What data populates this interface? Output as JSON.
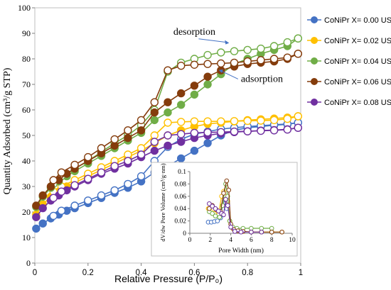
{
  "chart_data": {
    "type": "line",
    "xlabel": "Relative Pressure (P/P₀)",
    "ylabel": "Quantity Adsorbed (cm³/g STP)",
    "xlim": [
      0,
      1
    ],
    "ylim": [
      0,
      100
    ],
    "xticks": [
      "0",
      "0.2",
      "0.4",
      "0.6",
      "0.8",
      "1"
    ],
    "yticks": [
      "0",
      "10",
      "20",
      "30",
      "40",
      "50",
      "60",
      "70",
      "80",
      "90",
      "100"
    ],
    "grid": false,
    "legend_position": "right",
    "series": [
      {
        "name": "CoNiPr X= 0.00 US",
        "color": "#4472c4",
        "adsorption": {
          "x": [
            0.005,
            0.03,
            0.06,
            0.09,
            0.12,
            0.15,
            0.2,
            0.25,
            0.3,
            0.35,
            0.4,
            0.45,
            0.5,
            0.55,
            0.6,
            0.65,
            0.7,
            0.75,
            0.8,
            0.85,
            0.9,
            0.95,
            0.99
          ],
          "y": [
            13.5,
            15.5,
            17.5,
            19,
            20.5,
            21.5,
            23.5,
            25.5,
            27.5,
            29.5,
            32,
            35.5,
            38,
            41,
            44,
            47,
            50,
            52,
            53,
            53.5,
            54,
            54.3,
            55
          ]
        },
        "desorption": {
          "x": [
            0.99,
            0.95,
            0.9,
            0.85,
            0.8,
            0.75,
            0.7,
            0.65,
            0.6,
            0.55,
            0.5,
            0.45,
            0.4,
            0.35,
            0.3,
            0.25,
            0.2,
            0.15,
            0.1,
            0.07
          ],
          "y": [
            55,
            54.5,
            54.2,
            53.8,
            53.5,
            53,
            52.5,
            51.5,
            50.5,
            48.5,
            45.5,
            40,
            34,
            31,
            28.5,
            26.5,
            24.5,
            22.5,
            20.5,
            18.5
          ]
        }
      },
      {
        "name": "CoNiPr X= 0.02 US",
        "color": "#ffc000",
        "adsorption": {
          "x": [
            0.005,
            0.03,
            0.06,
            0.09,
            0.12,
            0.15,
            0.2,
            0.25,
            0.3,
            0.35,
            0.4,
            0.45,
            0.5,
            0.55,
            0.6,
            0.65,
            0.7,
            0.75,
            0.8,
            0.85,
            0.9,
            0.95,
            0.99
          ],
          "y": [
            19,
            23,
            26,
            28,
            30,
            31.5,
            34,
            36.5,
            39,
            41.5,
            44,
            47,
            50,
            52,
            53.5,
            54.5,
            55,
            55.5,
            56,
            56.3,
            56.6,
            57,
            57.5
          ]
        },
        "desorption": {
          "x": [
            0.99,
            0.95,
            0.9,
            0.85,
            0.8,
            0.75,
            0.7,
            0.65,
            0.6,
            0.55,
            0.5,
            0.45,
            0.4,
            0.35,
            0.3,
            0.25,
            0.2,
            0.15,
            0.1,
            0.07
          ],
          "y": [
            57.5,
            56.5,
            56,
            55.8,
            55.7,
            55.6,
            55.5,
            55.5,
            55.5,
            55.3,
            55,
            50,
            45,
            42.5,
            40,
            37.5,
            35,
            32.5,
            30,
            28
          ]
        }
      },
      {
        "name": "CoNiPr X= 0.04 US",
        "color": "#70ad47",
        "adsorption": {
          "x": [
            0.005,
            0.03,
            0.06,
            0.09,
            0.12,
            0.15,
            0.2,
            0.25,
            0.3,
            0.35,
            0.4,
            0.45,
            0.5,
            0.55,
            0.6,
            0.65,
            0.7,
            0.75,
            0.8,
            0.85,
            0.9,
            0.95,
            0.99
          ],
          "y": [
            22,
            26,
            29.5,
            32,
            34,
            36,
            39,
            42,
            45,
            48,
            51,
            56,
            59,
            62,
            66,
            70,
            74,
            78,
            80,
            82,
            83.5,
            85,
            88
          ]
        },
        "desorption": {
          "x": [
            0.99,
            0.95,
            0.9,
            0.85,
            0.8,
            0.75,
            0.7,
            0.65,
            0.6,
            0.55,
            0.5,
            0.45,
            0.4,
            0.35,
            0.3,
            0.25,
            0.2,
            0.15,
            0.1,
            0.07
          ],
          "y": [
            88,
            86.5,
            85,
            84,
            83.5,
            83,
            82.5,
            81.5,
            80,
            78.5,
            75,
            60,
            54,
            50,
            47,
            43.5,
            40,
            37,
            34,
            31
          ]
        }
      },
      {
        "name": "CoNiPr X= 0.06 US",
        "color": "#843c0c",
        "adsorption": {
          "x": [
            0.005,
            0.03,
            0.06,
            0.09,
            0.12,
            0.15,
            0.2,
            0.25,
            0.3,
            0.35,
            0.4,
            0.45,
            0.5,
            0.55,
            0.6,
            0.65,
            0.7,
            0.75,
            0.8,
            0.85,
            0.9,
            0.95,
            0.99
          ],
          "y": [
            22.5,
            26.5,
            30,
            32.5,
            35,
            37,
            40,
            43,
            46,
            49,
            52,
            59,
            63,
            66.5,
            69.5,
            73,
            75.5,
            77,
            78,
            78.5,
            79,
            80,
            82
          ]
        },
        "desorption": {
          "x": [
            0.99,
            0.95,
            0.9,
            0.85,
            0.8,
            0.75,
            0.7,
            0.65,
            0.6,
            0.55,
            0.5,
            0.45,
            0.4,
            0.35,
            0.3,
            0.25,
            0.2,
            0.15,
            0.1,
            0.07
          ],
          "y": [
            82,
            80.5,
            80,
            79.5,
            79,
            78.5,
            78.2,
            78,
            77.7,
            77.3,
            75.5,
            63,
            56,
            52,
            48.5,
            45,
            41.5,
            38.5,
            35.5,
            32.5
          ]
        }
      },
      {
        "name": "CoNiPr X= 0.08 US",
        "color": "#7030a0",
        "adsorption": {
          "x": [
            0.005,
            0.03,
            0.06,
            0.09,
            0.12,
            0.15,
            0.2,
            0.25,
            0.3,
            0.35,
            0.4,
            0.45,
            0.5,
            0.55,
            0.6,
            0.65,
            0.7,
            0.75,
            0.8,
            0.85,
            0.9,
            0.95,
            0.99
          ],
          "y": [
            18,
            21.5,
            24.5,
            26.5,
            28.5,
            30,
            32.5,
            35,
            37,
            39,
            41.5,
            44,
            46,
            47.5,
            49,
            50,
            50.8,
            51.3,
            51.6,
            51.9,
            52.1,
            52.4,
            53
          ]
        },
        "desorption": {
          "x": [
            0.99,
            0.95,
            0.9,
            0.85,
            0.8,
            0.75,
            0.7,
            0.65,
            0.6,
            0.55,
            0.5,
            0.45,
            0.4,
            0.35,
            0.3,
            0.25,
            0.2,
            0.15,
            0.1,
            0.07
          ],
          "y": [
            53,
            52.3,
            52,
            51.8,
            51.6,
            51.5,
            51.3,
            51.2,
            51,
            50.5,
            50,
            47.5,
            42.5,
            40,
            38,
            35.5,
            33,
            30.5,
            28,
            25.5
          ]
        }
      }
    ],
    "annotations": [
      {
        "text": "desorption",
        "x": 0.6,
        "y": 89.5
      },
      {
        "text": "adsorption",
        "x": 0.775,
        "y": 71
      }
    ],
    "inset": {
      "type": "line",
      "xlabel": "Pore Width (nm)",
      "ylabel": "dV/dw Pore Volume (cm³/g·nm)",
      "xlim": [
        0,
        10
      ],
      "ylim": [
        0,
        0.1
      ],
      "xticks": [
        "0",
        "2",
        "4",
        "6",
        "8",
        "10"
      ],
      "yticks": [
        "0",
        "0.02",
        "0.04",
        "0.06",
        "0.08",
        "0.1"
      ],
      "series": [
        {
          "name": "CoNiPr X= 0.00 US",
          "color": "#4472c4",
          "x": [
            1.8,
            2.1,
            2.4,
            2.7,
            3.0,
            3.2,
            3.4,
            3.6
          ],
          "y": [
            0.018,
            0.018,
            0.019,
            0.02,
            0.025,
            0.045,
            0.055,
            0.04
          ]
        },
        {
          "name": "CoNiPr X= 0.02 US",
          "color": "#ffc000",
          "x": [
            1.8,
            2.1,
            2.4,
            2.8,
            3.1,
            3.3,
            3.5,
            3.7,
            3.9,
            4.2,
            4.6,
            5.2,
            6,
            7,
            8,
            9
          ],
          "y": [
            0.04,
            0.035,
            0.032,
            0.03,
            0.06,
            0.068,
            0.06,
            0.052,
            0.02,
            0.008,
            0.004,
            0.003,
            0.002,
            0.002,
            0.002,
            0.002
          ]
        },
        {
          "name": "CoNiPr X= 0.04 US",
          "color": "#70ad47",
          "x": [
            1.9,
            2.2,
            2.5,
            2.9,
            3.2,
            3.5,
            3.7,
            3.9,
            4.2,
            4.6,
            5.2,
            6,
            7,
            8
          ],
          "y": [
            0.035,
            0.032,
            0.028,
            0.026,
            0.045,
            0.08,
            0.06,
            0.02,
            0.01,
            0.008,
            0.008,
            0.008,
            0.008,
            0.008
          ]
        },
        {
          "name": "CoNiPr X= 0.06 US",
          "color": "#843c0c",
          "x": [
            1.9,
            2.2,
            2.6,
            3.0,
            3.3,
            3.6,
            3.8,
            4.0,
            4.3,
            4.7,
            5.2,
            6,
            7,
            8,
            9
          ],
          "y": [
            0.04,
            0.045,
            0.038,
            0.035,
            0.065,
            0.085,
            0.07,
            0.015,
            0.006,
            0.004,
            0.003,
            0.002,
            0.002,
            0.002,
            0.002
          ]
        },
        {
          "name": "CoNiPr X= 0.08 US",
          "color": "#7030a0",
          "x": [
            1.9,
            2.2,
            2.5,
            2.8,
            3.1,
            3.3,
            3.5,
            3.7,
            4.0,
            4.4,
            5.0,
            6,
            7
          ],
          "y": [
            0.048,
            0.044,
            0.04,
            0.036,
            0.032,
            0.03,
            0.055,
            0.045,
            0.01,
            0.003,
            0.002,
            0.002,
            0.002
          ]
        }
      ]
    }
  }
}
